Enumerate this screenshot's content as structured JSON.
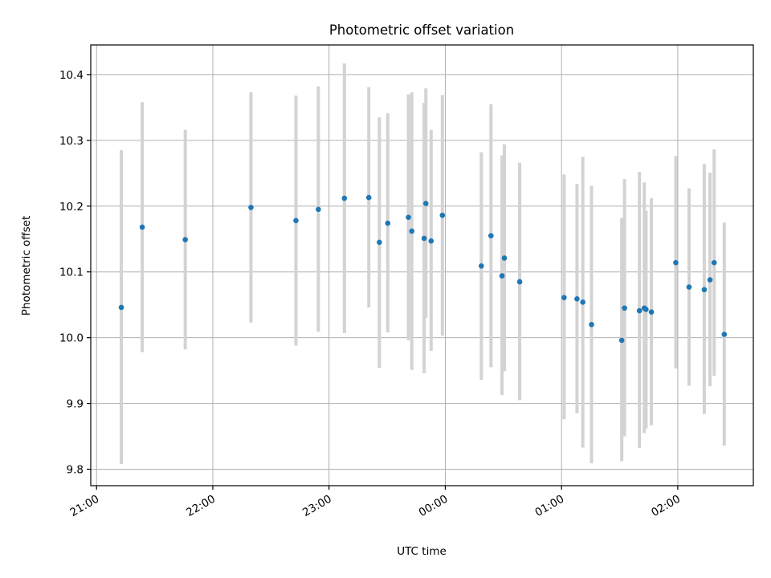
{
  "chart_data": {
    "type": "scatter",
    "title": "Photometric offset variation",
    "xlabel": "UTC time",
    "ylabel": "Photometric offset",
    "x_tick_labels": [
      "21:00",
      "22:00",
      "23:00",
      "00:00",
      "01:00",
      "02:00"
    ],
    "x_tick_hours": [
      21,
      22,
      23,
      24,
      25,
      26
    ],
    "x_tick_rotation_deg": 30,
    "y_ticks": [
      9.8,
      9.9,
      10.0,
      10.1,
      10.2,
      10.3,
      10.4
    ],
    "y_tick_labels": [
      "9.8",
      "9.9",
      "10.0",
      "10.1",
      "10.2",
      "10.3",
      "10.4"
    ],
    "xlim_hours": [
      20.95,
      26.65
    ],
    "ylim": [
      9.775,
      10.445
    ],
    "grid": true,
    "marker_color": "#1f77b4",
    "errorbar_color": "#d3d3d3",
    "x_unit_note": "hours of day UTC (values above 24 are after midnight)",
    "points": [
      {
        "t": 21.213,
        "y": 10.046,
        "lo": 9.808,
        "hi": 10.285
      },
      {
        "t": 21.393,
        "y": 10.168,
        "lo": 9.978,
        "hi": 10.358
      },
      {
        "t": 21.763,
        "y": 10.149,
        "lo": 9.982,
        "hi": 10.316
      },
      {
        "t": 22.328,
        "y": 10.198,
        "lo": 10.023,
        "hi": 10.373
      },
      {
        "t": 22.715,
        "y": 10.178,
        "lo": 9.988,
        "hi": 10.368
      },
      {
        "t": 22.908,
        "y": 10.195,
        "lo": 10.009,
        "hi": 10.382
      },
      {
        "t": 23.132,
        "y": 10.212,
        "lo": 10.007,
        "hi": 10.417
      },
      {
        "t": 23.342,
        "y": 10.213,
        "lo": 10.046,
        "hi": 10.381
      },
      {
        "t": 23.433,
        "y": 10.145,
        "lo": 9.954,
        "hi": 10.335
      },
      {
        "t": 23.505,
        "y": 10.174,
        "lo": 10.008,
        "hi": 10.341
      },
      {
        "t": 23.683,
        "y": 10.183,
        "lo": 9.996,
        "hi": 10.37
      },
      {
        "t": 23.712,
        "y": 10.162,
        "lo": 9.951,
        "hi": 10.373
      },
      {
        "t": 23.818,
        "y": 10.151,
        "lo": 9.946,
        "hi": 10.357
      },
      {
        "t": 23.833,
        "y": 10.204,
        "lo": 10.03,
        "hi": 10.379
      },
      {
        "t": 23.878,
        "y": 10.147,
        "lo": 9.98,
        "hi": 10.316
      },
      {
        "t": 23.975,
        "y": 10.186,
        "lo": 10.003,
        "hi": 10.369
      },
      {
        "t": 24.31,
        "y": 10.109,
        "lo": 9.936,
        "hi": 10.282
      },
      {
        "t": 24.393,
        "y": 10.155,
        "lo": 9.955,
        "hi": 10.355
      },
      {
        "t": 24.488,
        "y": 10.094,
        "lo": 9.913,
        "hi": 10.277
      },
      {
        "t": 24.508,
        "y": 10.121,
        "lo": 9.949,
        "hi": 10.294
      },
      {
        "t": 24.64,
        "y": 10.085,
        "lo": 9.905,
        "hi": 10.266
      },
      {
        "t": 25.022,
        "y": 10.061,
        "lo": 9.876,
        "hi": 10.248
      },
      {
        "t": 25.133,
        "y": 10.059,
        "lo": 9.885,
        "hi": 10.234
      },
      {
        "t": 25.183,
        "y": 10.054,
        "lo": 9.833,
        "hi": 10.275
      },
      {
        "t": 25.258,
        "y": 10.02,
        "lo": 9.809,
        "hi": 10.231
      },
      {
        "t": 25.518,
        "y": 9.996,
        "lo": 9.812,
        "hi": 10.182
      },
      {
        "t": 25.542,
        "y": 10.045,
        "lo": 9.85,
        "hi": 10.241
      },
      {
        "t": 25.67,
        "y": 10.041,
        "lo": 9.832,
        "hi": 10.252
      },
      {
        "t": 25.712,
        "y": 10.045,
        "lo": 9.855,
        "hi": 10.236
      },
      {
        "t": 25.727,
        "y": 10.043,
        "lo": 9.862,
        "hi": 10.193
      },
      {
        "t": 25.773,
        "y": 10.039,
        "lo": 9.867,
        "hi": 10.212
      },
      {
        "t": 25.983,
        "y": 10.114,
        "lo": 9.953,
        "hi": 10.276
      },
      {
        "t": 26.097,
        "y": 10.077,
        "lo": 9.927,
        "hi": 10.227
      },
      {
        "t": 26.228,
        "y": 10.073,
        "lo": 9.884,
        "hi": 10.264
      },
      {
        "t": 26.277,
        "y": 10.088,
        "lo": 9.926,
        "hi": 10.251
      },
      {
        "t": 26.313,
        "y": 10.114,
        "lo": 9.942,
        "hi": 10.286
      },
      {
        "t": 26.4,
        "y": 10.005,
        "lo": 9.836,
        "hi": 10.175
      }
    ]
  }
}
